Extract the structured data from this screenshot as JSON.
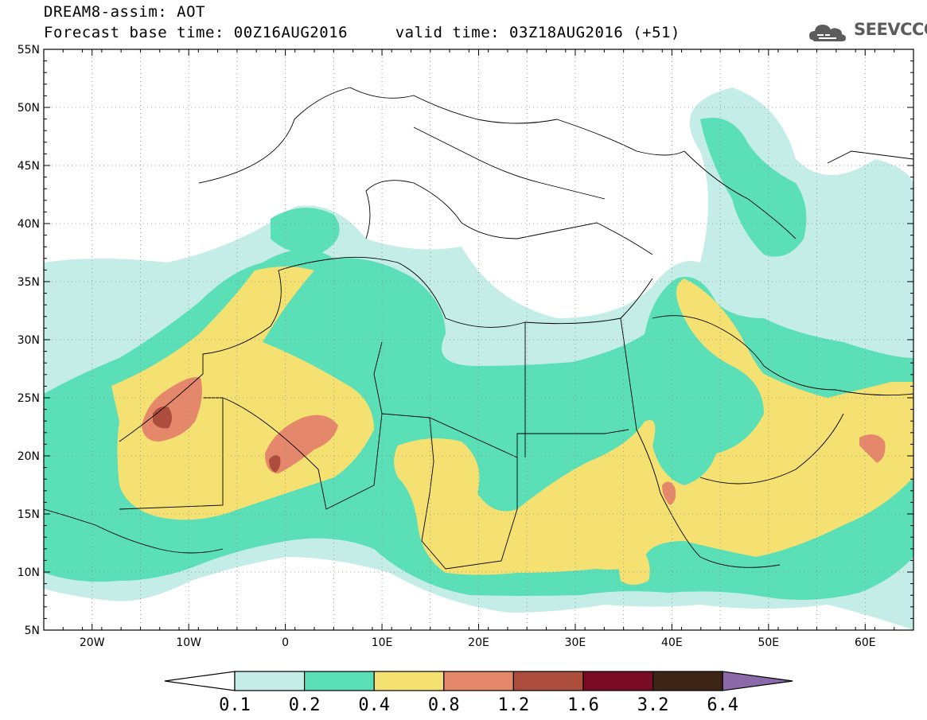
{
  "header": {
    "title_line1": "DREAM8-assim: AOT",
    "title_line2": "Forecast base time: 00Z16AUG2016     valid time: 03Z18AUG2016 (+51)",
    "logo_text": "SEEVCCC"
  },
  "map": {
    "lat_range": [
      5,
      55
    ],
    "lon_range": [
      -25,
      65
    ],
    "lat_labels": [
      "55N",
      "50N",
      "45N",
      "40N",
      "35N",
      "30N",
      "25N",
      "20N",
      "15N",
      "10N",
      "5N"
    ],
    "lon_labels": [
      "20W",
      "10W",
      "0",
      "10E",
      "20E",
      "30E",
      "40E",
      "50E",
      "60E"
    ]
  },
  "colorbar": {
    "levels": [
      "0.1",
      "0.2",
      "0.4",
      "0.8",
      "1.2",
      "1.6",
      "3.2",
      "6.4"
    ],
    "colors": [
      "#ffffff",
      "#c3ede6",
      "#5bdfb7",
      "#f5e171",
      "#e4876a",
      "#ad4d3d",
      "#7a0b24",
      "#3c2517",
      "#8a6aa8"
    ]
  }
}
